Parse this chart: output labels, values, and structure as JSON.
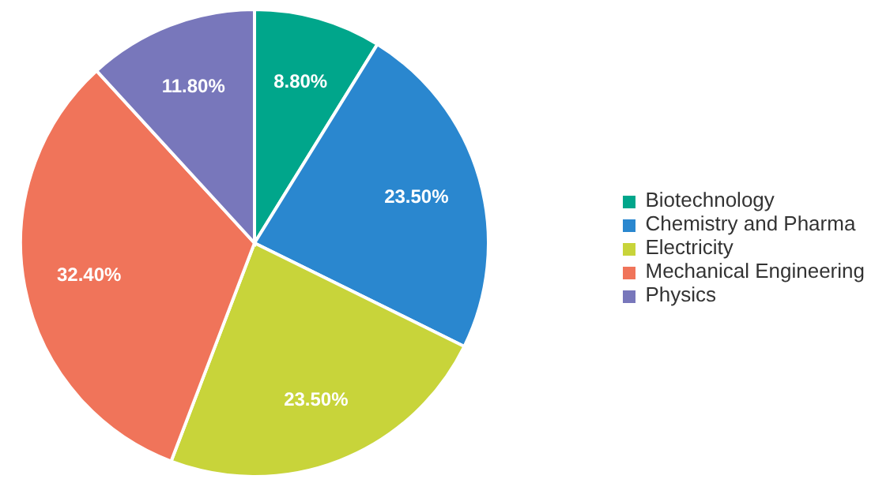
{
  "chart_data": {
    "type": "pie",
    "categories": [
      "Biotechnology",
      "Chemistry and Pharma",
      "Electricity",
      "Mechanical Engineering",
      "Physics"
    ],
    "values": [
      8.8,
      23.5,
      23.5,
      32.4,
      11.8
    ],
    "value_labels": [
      "8.80%",
      "23.50%",
      "23.50%",
      "32.40%",
      "11.80%"
    ],
    "colors": [
      "#00a68b",
      "#2a87cf",
      "#c8d43a",
      "#f0745a",
      "#7877bb"
    ],
    "legend": "right"
  }
}
